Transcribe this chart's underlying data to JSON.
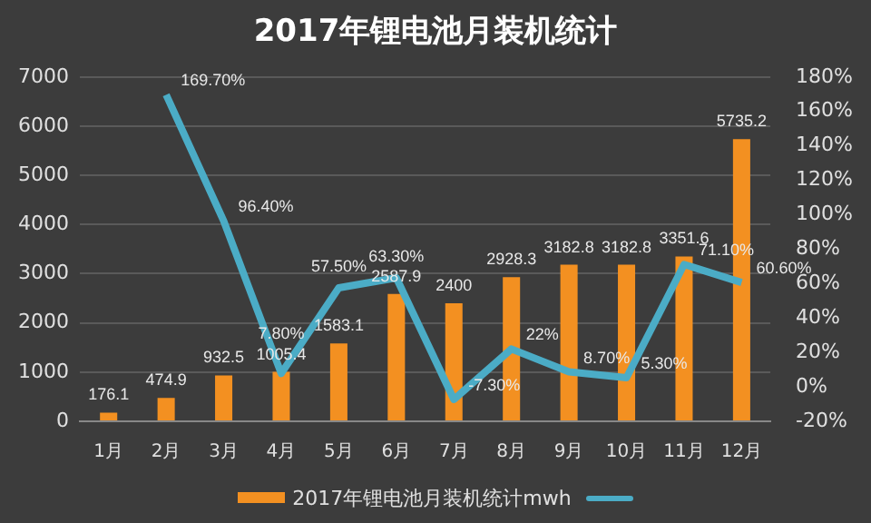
{
  "chart_data": {
    "type": "bar",
    "title": "2017年锂电池月装机统计",
    "categories": [
      "1月",
      "2月",
      "3月",
      "4月",
      "5月",
      "6月",
      "7月",
      "8月",
      "9月",
      "10月",
      "11月",
      "12月"
    ],
    "series": [
      {
        "name": "2017年锂电池月装机统计mwh",
        "color": "#f39021",
        "values": [
          176.1,
          474.9,
          932.5,
          1005.4,
          1583.1,
          2587.9,
          2400,
          2928.3,
          3182.8,
          3182.8,
          3351.6,
          5735.2
        ],
        "value_labels": [
          "176.1",
          "474.9",
          "932.5",
          "1005.4",
          "1583.1",
          "2587.9",
          "2400",
          "2928.3",
          "3182.8",
          "3182.8",
          "3351.6",
          "5735.2"
        ]
      },
      {
        "type": "line",
        "axis": "y2",
        "color": "#4bacc6",
        "values": [
          null,
          169.7,
          96.4,
          7.8,
          57.5,
          63.3,
          -7.3,
          22,
          8.7,
          5.3,
          71.1,
          60.6
        ],
        "value_labels": [
          null,
          "169.70%",
          "96.40%",
          "7.80%",
          "57.50%",
          "63.30%",
          "-7.30%",
          "22%",
          "8.70%",
          "5.30%",
          "71.10%",
          "60.60%"
        ]
      }
    ],
    "ylim": [
      0,
      7000
    ],
    "yticks": [
      0,
      1000,
      2000,
      3000,
      4000,
      5000,
      6000,
      7000
    ],
    "y2lim": [
      -20,
      180
    ],
    "y2ticks": [
      {
        "value": -20,
        "label": "-20%"
      },
      {
        "value": 0,
        "label": "0%"
      },
      {
        "value": 20,
        "label": "20%"
      },
      {
        "value": 40,
        "label": "40%"
      },
      {
        "value": 60,
        "label": "60%"
      },
      {
        "value": 80,
        "label": "80%"
      },
      {
        "value": 100,
        "label": "100%"
      },
      {
        "value": 120,
        "label": "120%"
      },
      {
        "value": 140,
        "label": "140%"
      },
      {
        "value": 160,
        "label": "160%"
      },
      {
        "value": 180,
        "label": "180%"
      }
    ],
    "grid": "y",
    "legend": "bottom",
    "marker": "none"
  }
}
